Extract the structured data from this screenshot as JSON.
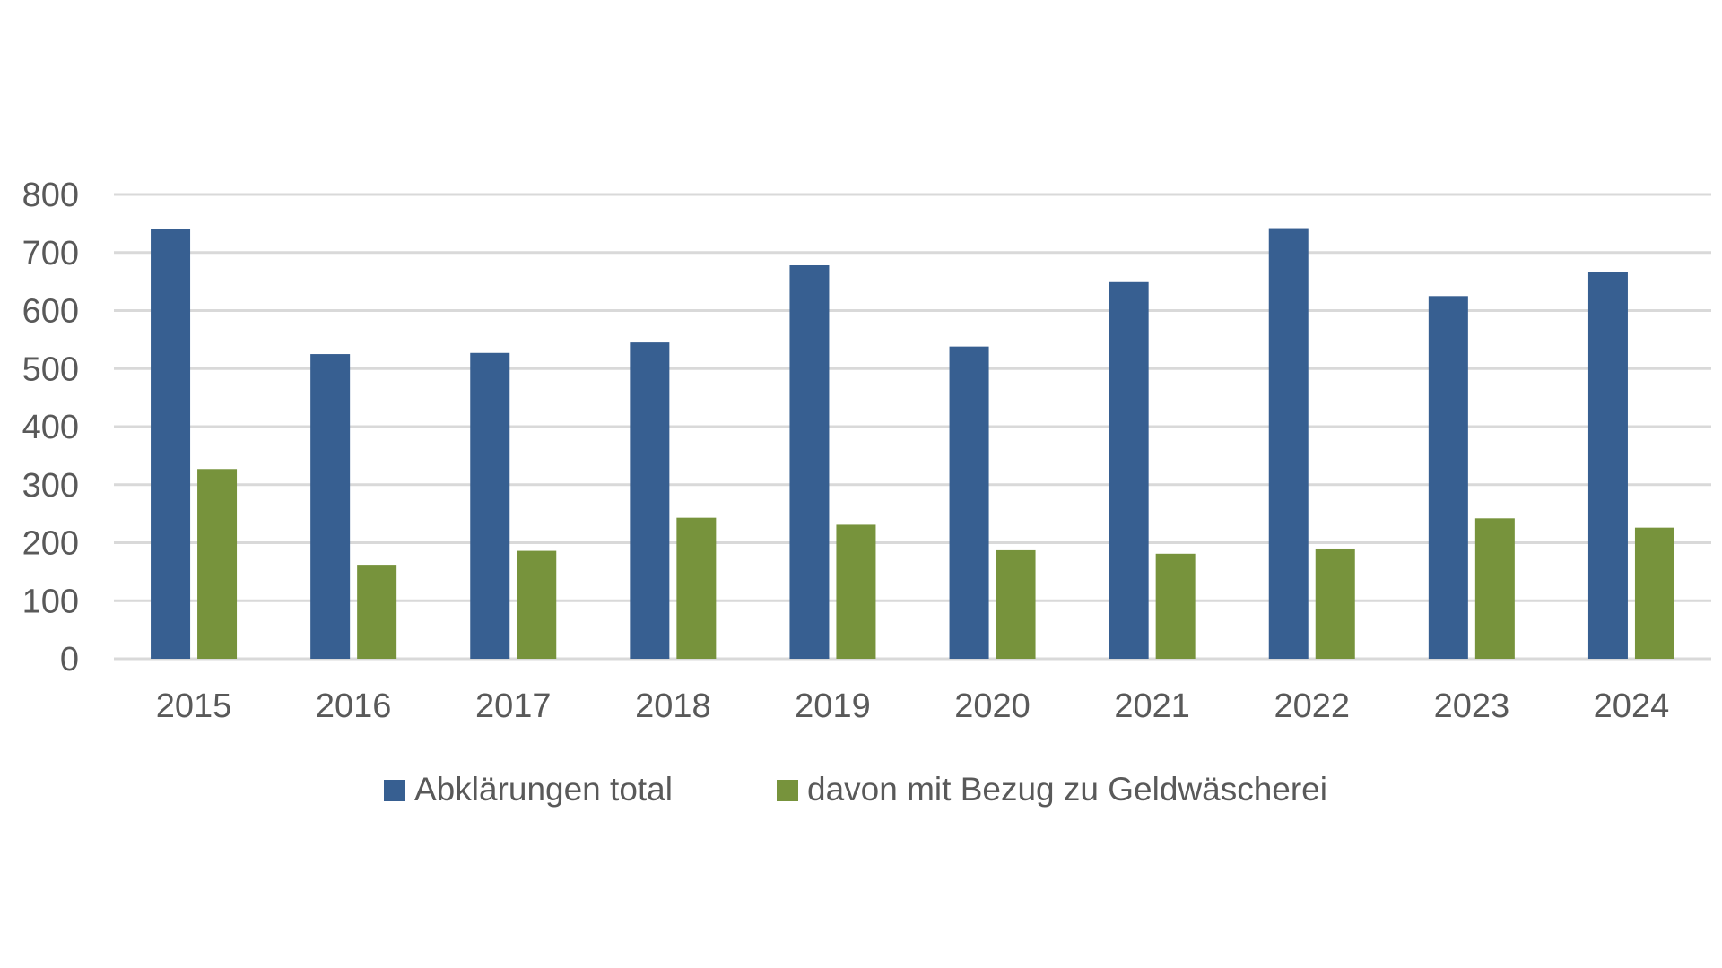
{
  "chart_data": {
    "type": "bar",
    "title": "",
    "xlabel": "",
    "ylabel": "",
    "ylim": [
      0,
      800
    ],
    "yticks": [
      0,
      100,
      200,
      300,
      400,
      500,
      600,
      700,
      800
    ],
    "grid": true,
    "legend_position": "bottom",
    "categories": [
      "2015",
      "2016",
      "2017",
      "2018",
      "2019",
      "2020",
      "2021",
      "2022",
      "2023",
      "2024"
    ],
    "series": [
      {
        "name": "Abklärungen total",
        "color": "#375F91",
        "values": [
          741,
          525,
          527,
          545,
          678,
          538,
          649,
          742,
          625,
          667
        ]
      },
      {
        "name": "davon mit Bezug zu Geldwäscherei",
        "color": "#77933C",
        "values": [
          327,
          162,
          186,
          243,
          231,
          187,
          181,
          190,
          242,
          226
        ]
      }
    ]
  }
}
